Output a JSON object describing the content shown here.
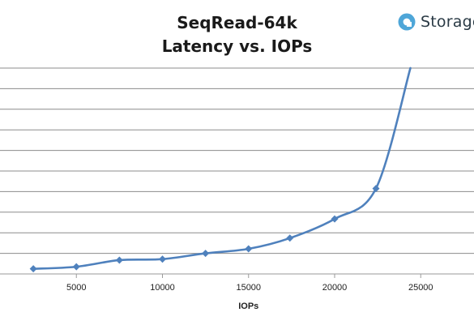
{
  "brand": {
    "name": "Storage",
    "icon": "storage-review-logo-icon",
    "color": "#4ea6d8"
  },
  "chart_data": {
    "type": "line",
    "title": "SeqRead-64k",
    "subtitle": "Latency vs. IOPs",
    "xlabel": "IOPs",
    "ylabel": "",
    "xlim": [
      0,
      27000
    ],
    "x_ticks": [
      5000,
      10000,
      15000,
      20000,
      25000
    ],
    "y_gridlines": 10,
    "grid": "horizontal",
    "series": [
      {
        "color": "#4f81bd",
        "marker": "diamond",
        "points": [
          {
            "x": 2500,
            "y": 0.25
          },
          {
            "x": 5000,
            "y": 0.35
          },
          {
            "x": 7500,
            "y": 0.67
          },
          {
            "x": 10000,
            "y": 0.72
          },
          {
            "x": 12500,
            "y": 1.0
          },
          {
            "x": 15000,
            "y": 1.22
          },
          {
            "x": 17400,
            "y": 1.74
          },
          {
            "x": 20000,
            "y": 2.67
          },
          {
            "x": 22400,
            "y": 4.15
          }
        ],
        "curve_end": {
          "x": 24400,
          "y": 10.2
        }
      }
    ]
  }
}
